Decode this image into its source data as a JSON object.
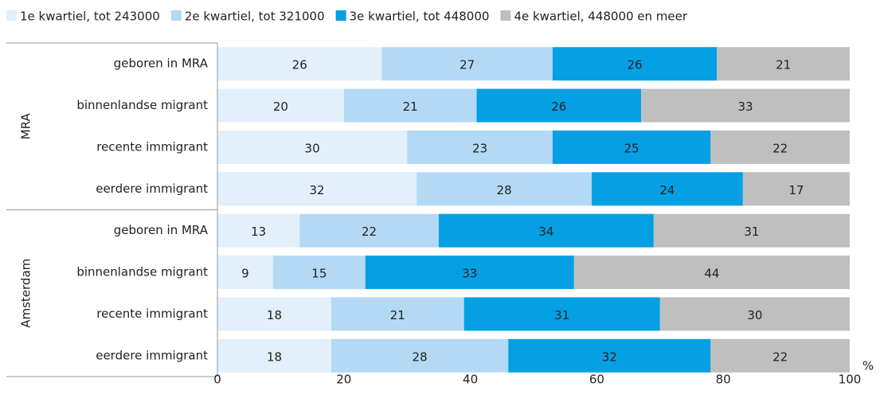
{
  "chart_data": {
    "type": "stacked-barh",
    "groups": [
      {
        "label": "MRA",
        "rows": [
          0,
          3
        ]
      },
      {
        "label": "Amsterdam",
        "rows": [
          4,
          7
        ]
      }
    ],
    "categories": [
      "geboren in MRA",
      "binnenlandse migrant",
      "recente immigrant",
      "eerdere immigrant",
      "geboren in MRA",
      "binnenlandse migrant",
      "recente immigrant",
      "eerdere immigrant"
    ],
    "series": [
      {
        "name": "1e kwartiel, tot 243000",
        "color": "#e2f0fb",
        "values": [
          26,
          20,
          30,
          31.5,
          13,
          8.8,
          18,
          18
        ],
        "value_labels": [
          "26",
          "20",
          "30",
          "32",
          "13",
          "9",
          "18",
          "18"
        ]
      },
      {
        "name": "2e kwartiel, tot 321000",
        "color": "#b3d9f4",
        "values": [
          27,
          21,
          23,
          27.7,
          22,
          14.6,
          21,
          28
        ],
        "value_labels": [
          "27",
          "21",
          "23",
          "28",
          "22",
          "15",
          "21",
          "28"
        ]
      },
      {
        "name": "3e kwartiel, tot 448000",
        "color": "#05a0e3",
        "values": [
          26,
          26,
          25,
          23.9,
          34,
          33,
          31,
          32
        ],
        "value_labels": [
          "26",
          "26",
          "25",
          "24",
          "34",
          "33",
          "31",
          "32"
        ]
      },
      {
        "name": "4e kwartiel, 448000 en meer",
        "color": "#bfbfbf",
        "values": [
          21,
          33,
          22,
          16.9,
          31,
          43.6,
          30,
          22
        ],
        "value_labels": [
          "21",
          "33",
          "22",
          "17",
          "31",
          "44",
          "30",
          "22"
        ]
      }
    ],
    "unit": "%",
    "xlim": [
      0,
      100
    ],
    "xticks": [
      0,
      20,
      40,
      60,
      80,
      100
    ]
  }
}
